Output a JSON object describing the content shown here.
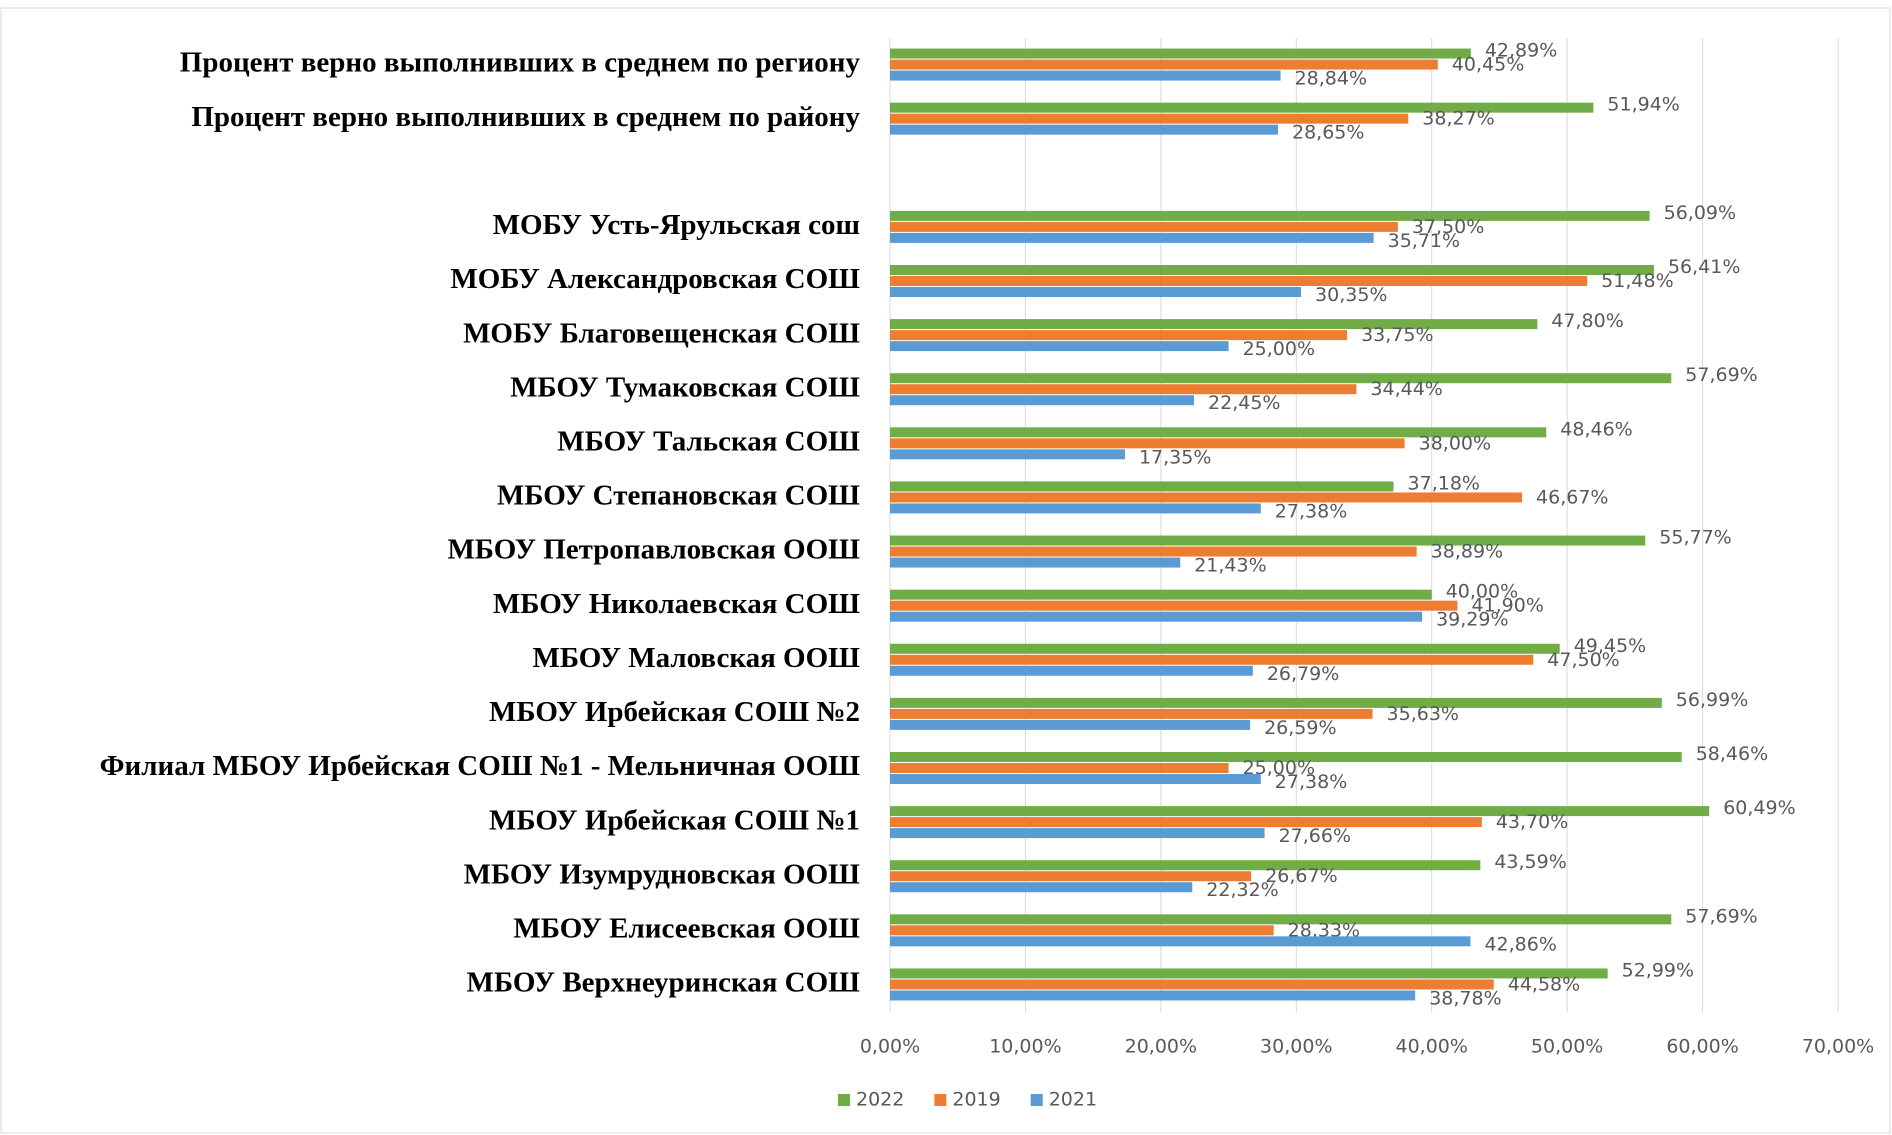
{
  "chart_data": {
    "type": "hbar",
    "categories": [
      "Процент верно выполнивших в среднем по региону",
      "Процент верно выполнивших в среднем по району",
      null,
      "МОБУ Усть-Ярульская сош",
      "МОБУ Александровская СОШ",
      "МОБУ  Благовещенская СОШ",
      "МБОУ Тумаковская СОШ",
      "МБОУ Тальская СОШ",
      "МБОУ Степановская СОШ",
      "МБОУ Петропавловская ООШ",
      "МБОУ Николаевская СОШ",
      "МБОУ Маловская ООШ",
      "МБОУ Ирбейская СОШ №2",
      "Филиал МБОУ Ирбейская СОШ №1 - Мельничная ООШ",
      "МБОУ Ирбейская СОШ №1",
      "МБОУ Изумрудновская ООШ",
      "МБОУ Елисеевская ООШ",
      "МБОУ Верхнеуринская СОШ"
    ],
    "series": [
      {
        "name": "2022",
        "color": "#70ad47",
        "values": [
          42.89,
          51.94,
          null,
          56.09,
          56.41,
          47.8,
          57.69,
          48.46,
          37.18,
          55.77,
          40.0,
          49.45,
          56.99,
          58.46,
          60.49,
          43.59,
          57.69,
          52.99
        ],
        "value_labels": [
          "42,89%",
          "51,94%",
          null,
          "56,09%",
          "56,41%",
          "47,80%",
          "57,69%",
          "48,46%",
          "37,18%",
          "55,77%",
          "40,00%",
          "49,45%",
          "56,99%",
          "58,46%",
          "60,49%",
          "43,59%",
          "57,69%",
          "52,99%"
        ]
      },
      {
        "name": "2019",
        "color": "#ed7d31",
        "values": [
          40.45,
          38.27,
          null,
          37.5,
          51.48,
          33.75,
          34.44,
          38.0,
          46.67,
          38.89,
          41.9,
          47.5,
          35.63,
          25.0,
          43.7,
          26.67,
          28.33,
          44.58
        ],
        "value_labels": [
          "40,45%",
          "38,27%",
          null,
          "37,50%",
          "51,48%",
          "33,75%",
          "34,44%",
          "38,00%",
          "46,67%",
          "38,89%",
          "41,90%",
          "47,50%",
          "35,63%",
          "25,00%",
          "43,70%",
          "26,67%",
          "28,33%",
          "44,58%"
        ]
      },
      {
        "name": "2021",
        "color": "#5b9bd5",
        "values": [
          28.84,
          28.65,
          null,
          35.71,
          30.35,
          25.0,
          22.45,
          17.35,
          27.38,
          21.43,
          39.29,
          26.79,
          26.59,
          27.38,
          27.66,
          22.32,
          42.86,
          38.78
        ],
        "value_labels": [
          "28,84%",
          "28,65%",
          null,
          "35,71%",
          "30,35%",
          "25,00%",
          "22,45%",
          "17,35%",
          "27,38%",
          "21,43%",
          "39,29%",
          "26,79%",
          "26,59%",
          "27,38%",
          "27,66%",
          "22,32%",
          "42,86%",
          "38,78%"
        ]
      }
    ],
    "xlim": [
      0,
      70
    ],
    "xticks": [
      {
        "value": 0,
        "label": "0,00%"
      },
      {
        "value": 10,
        "label": "10,00%"
      },
      {
        "value": 20,
        "label": "20,00%"
      },
      {
        "value": 30,
        "label": "30,00%"
      },
      {
        "value": 40,
        "label": "40,00%"
      },
      {
        "value": 50,
        "label": "50,00%"
      },
      {
        "value": 60,
        "label": "60,00%"
      },
      {
        "value": 70,
        "label": "70,00%"
      }
    ],
    "grid": true,
    "legend": "bottom"
  }
}
